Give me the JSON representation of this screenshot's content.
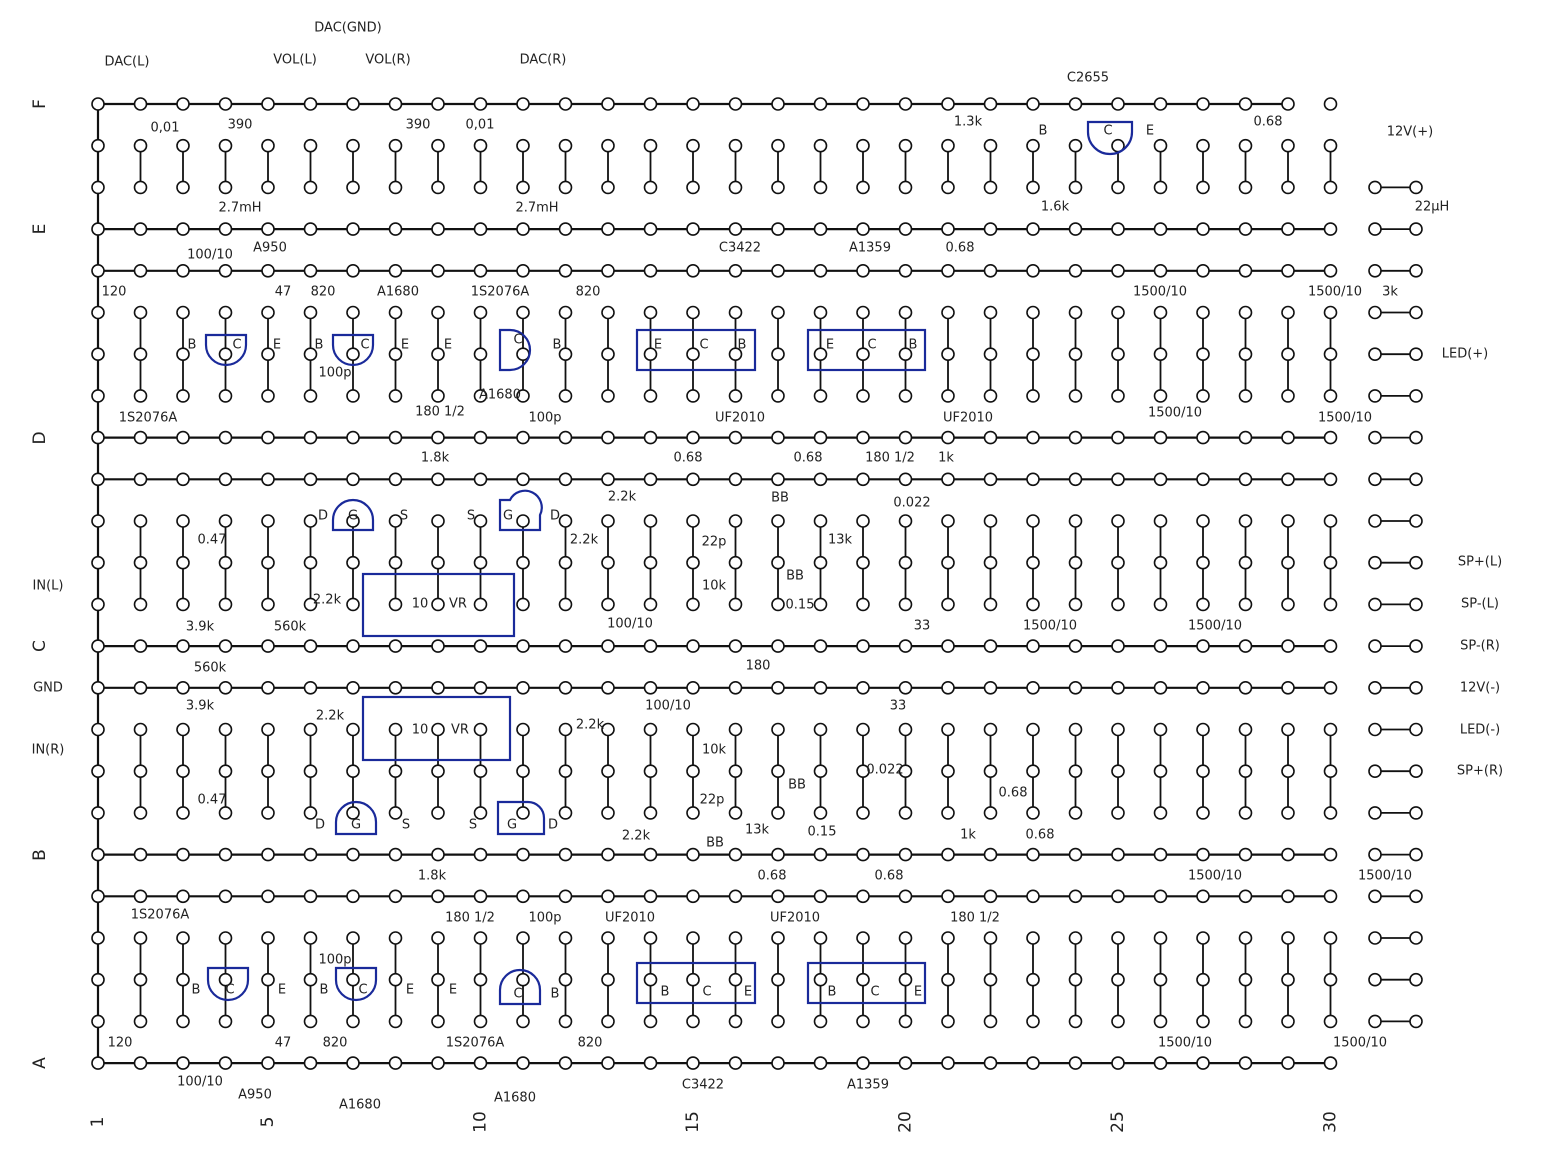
{
  "row_labels": [
    "F",
    "E",
    "D",
    "C",
    "B",
    "A"
  ],
  "column_numbers": [
    1,
    5,
    10,
    15,
    20,
    25,
    30
  ],
  "labels": [
    "DAC(L)",
    "DAC(GND)",
    "VOL(L)",
    "VOL(R)",
    "DAC(R)",
    "C2655",
    "0,01",
    "390",
    "390",
    "0,01",
    "2.7mH",
    "2.7mH",
    "1.3k",
    "B",
    "C",
    "E",
    "0.68",
    "12V(+)",
    "1.6k",
    "22μH",
    "100/10",
    "A950",
    "C3422",
    "A1359",
    "0.68",
    "120",
    "47",
    "820",
    "A1680",
    "1S2076A",
    "820",
    "1500/10",
    "1500/10",
    "3k",
    "B",
    "C",
    "E",
    "B",
    "C",
    "E",
    "E",
    "C",
    "B",
    "E",
    "C",
    "B",
    "E",
    "C",
    "B",
    "LED(+)",
    "1S2076A",
    "100p",
    "180 1/2",
    "A1680",
    "100p",
    "UF2010",
    "UF2010",
    "1500/10",
    "1500/10",
    "0.68",
    "0.68",
    "180 1/2",
    "1k",
    "1.8k",
    "BB",
    "2.2k",
    "0.022",
    "0.47",
    "D",
    "G",
    "S",
    "S",
    "G",
    "D",
    "22p",
    "13k",
    "10k",
    "BB",
    "2.2k",
    "IN(L)",
    "3.9k",
    "560k",
    "2.2k",
    "10",
    "VR",
    "0.15",
    "33",
    "1500/10",
    "1500/10",
    "SP+(L)",
    "SP-(L)",
    "SP-(R)",
    "100/10",
    "560k",
    "GND",
    "180",
    "100/10",
    "33",
    "12V(-)",
    "3.9k",
    "2.2k",
    "10",
    "VR",
    "2.2k",
    "IN(R)",
    "LED(-)",
    "10k",
    "0.022",
    "BB",
    "SP+(R)",
    "0.68",
    "0.47",
    "D",
    "G",
    "S",
    "S",
    "G",
    "D",
    "22p",
    "2.2k",
    "13k",
    "0.15",
    "1k",
    "0.68",
    "BB",
    "1.8k",
    "0.68",
    "0.68",
    "1500/10",
    "1500/10",
    "1S2076A",
    "180 1/2",
    "100p",
    "UF2010",
    "UF2010",
    "180 1/2",
    "B",
    "C",
    "E",
    "100p",
    "B",
    "C",
    "E",
    "E",
    "C",
    "B",
    "B",
    "C",
    "E",
    "B",
    "C",
    "E",
    "120",
    "47",
    "820",
    "1S2076A",
    "820",
    "1500/10",
    "1500/10",
    "100/10",
    "A950",
    "A1680",
    "A1680",
    "C3422",
    "A1359"
  ]
}
